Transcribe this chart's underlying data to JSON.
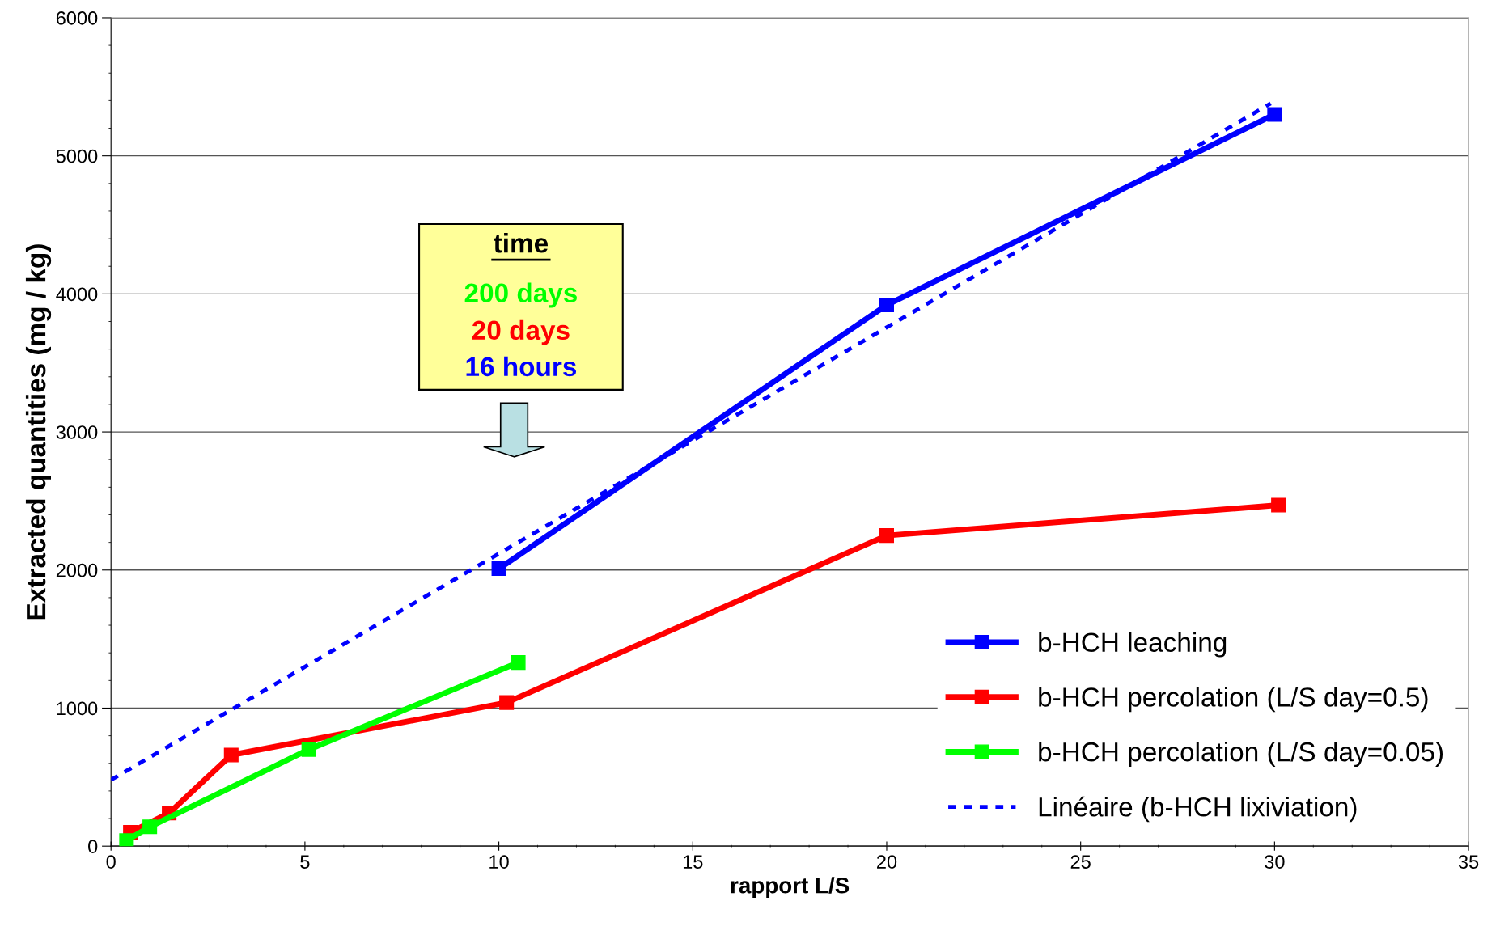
{
  "chart_data": {
    "type": "line",
    "xlabel": "rapport L/S",
    "ylabel": "Extracted quantities (mg / kg)",
    "xlim": [
      0,
      35
    ],
    "xticks": [
      0,
      5,
      10,
      15,
      20,
      25,
      30,
      35
    ],
    "ylim": [
      0,
      6000
    ],
    "yticks": [
      0,
      1000,
      2000,
      3000,
      4000,
      5000,
      6000
    ],
    "grid": "y",
    "legend": "bottom right",
    "marker": "square",
    "line_style": "solid",
    "series": [
      {
        "name": "b-HCH leaching",
        "color": "#0000ff",
        "x": [
          10,
          20,
          30
        ],
        "values": [
          2010,
          3920,
          5300
        ]
      },
      {
        "name": "b-HCH percolation (L/S day=0.5)",
        "color": "#ff0000",
        "x": [
          0.5,
          1.5,
          3.1,
          10.2,
          20,
          30.1
        ],
        "values": [
          100,
          240,
          660,
          1040,
          2250,
          2470
        ]
      },
      {
        "name": "b-HCH percolation (L/S day=0.05)",
        "color": "#00ff00",
        "x": [
          0.4,
          1.0,
          5.1,
          10.5
        ],
        "values": [
          40,
          140,
          700,
          1330
        ]
      },
      {
        "name": "Linéaire (b-HCH lixiviation)",
        "color": "#0000ff",
        "type": "line",
        "marker": "none",
        "line_style": "dashed",
        "x": [
          0,
          29.9
        ],
        "values": [
          480,
          5380
        ]
      }
    ],
    "annotations": [
      "time",
      "200 days",
      "20 days",
      "16 hours"
    ]
  }
}
